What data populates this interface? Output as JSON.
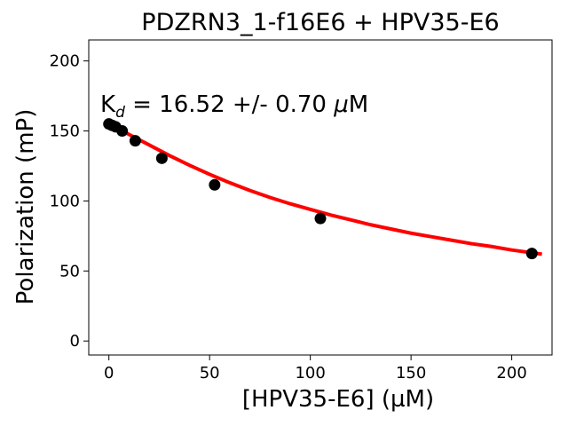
{
  "chart_data": {
    "type": "scatter",
    "title": "PDZRN3_1-f16E6 + HPV35-E6",
    "xlabel": "[HPV35-E6] (µM)",
    "ylabel": "Polarization (mP)",
    "xlim": [
      -10,
      220
    ],
    "ylim": [
      -10,
      215
    ],
    "xticks": [
      0,
      50,
      100,
      150,
      200
    ],
    "yticks": [
      0,
      50,
      100,
      150,
      200
    ],
    "annotation": {
      "prefix": "K",
      "subscript": "d",
      "text": " = 16.52 +/- 0.70 ",
      "unit_symbol": "μ",
      "unit": "M"
    },
    "points": {
      "color": "#000000",
      "x": [
        0,
        1.6,
        3.3,
        6.6,
        13.1,
        26.3,
        52.5,
        105,
        210
      ],
      "y": [
        155,
        154,
        153,
        150,
        143,
        130.5,
        111.5,
        87.5,
        62.5
      ]
    },
    "fit": {
      "color": "#ff0000",
      "x": [
        0,
        5,
        10,
        20,
        30,
        40,
        50,
        60,
        70,
        80,
        90,
        100,
        110,
        120,
        130,
        140,
        150,
        160,
        170,
        180,
        190,
        200,
        210,
        215
      ],
      "y": [
        154.5,
        151.5,
        147.5,
        140.0,
        132.5,
        125.5,
        119.0,
        113.0,
        107.5,
        102.5,
        98.0,
        94.0,
        90.0,
        86.5,
        83.0,
        80.0,
        77.0,
        74.5,
        72.0,
        69.5,
        67.5,
        65.0,
        63.0,
        62.0
      ]
    },
    "grid": false
  }
}
